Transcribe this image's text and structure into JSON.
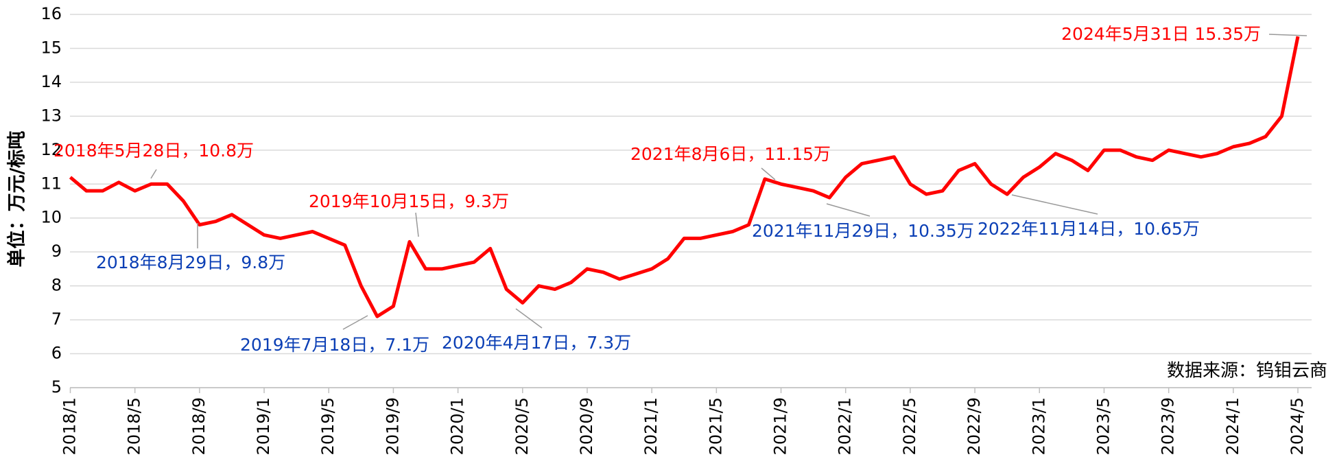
{
  "chart_data": {
    "type": "line",
    "y_label": "单位：万元/标吨",
    "source": "数据来源：钨钼云商",
    "categories": [
      "2018/1",
      "2018/2",
      "2018/3",
      "2018/4",
      "2018/5",
      "2018/6",
      "2018/7",
      "2018/8",
      "2018/9",
      "2018/10",
      "2018/11",
      "2018/12",
      "2019/1",
      "2019/2",
      "2019/3",
      "2019/4",
      "2019/5",
      "2019/6",
      "2019/7",
      "2019/8",
      "2019/9",
      "2019/10",
      "2019/11",
      "2019/12",
      "2020/1",
      "2020/2",
      "2020/3",
      "2020/4",
      "2020/5",
      "2020/6",
      "2020/7",
      "2020/8",
      "2020/9",
      "2020/10",
      "2020/11",
      "2020/12",
      "2021/1",
      "2021/2",
      "2021/3",
      "2021/4",
      "2021/5",
      "2021/6",
      "2021/7",
      "2021/8",
      "2021/9",
      "2021/10",
      "2021/11",
      "2021/12",
      "2022/1",
      "2022/2",
      "2022/3",
      "2022/4",
      "2022/5",
      "2022/6",
      "2022/7",
      "2022/8",
      "2022/9",
      "2022/10",
      "2022/11",
      "2022/12",
      "2023/1",
      "2023/2",
      "2023/3",
      "2023/4",
      "2023/5",
      "2023/6",
      "2023/7",
      "2023/8",
      "2023/9",
      "2023/10",
      "2023/11",
      "2023/12",
      "2024/1",
      "2024/2",
      "2024/3",
      "2024/4",
      "2024/5"
    ],
    "series": [
      {
        "color": "#ff0000",
        "values": [
          11.2,
          10.8,
          10.8,
          11.05,
          10.8,
          11.0,
          11.0,
          10.5,
          9.8,
          9.9,
          10.1,
          9.8,
          9.5,
          9.4,
          9.5,
          9.6,
          9.4,
          9.2,
          8.0,
          7.1,
          7.4,
          9.3,
          8.5,
          8.5,
          8.6,
          8.7,
          9.1,
          7.9,
          7.5,
          8.0,
          7.9,
          8.1,
          8.5,
          8.4,
          8.2,
          8.35,
          8.5,
          8.8,
          9.4,
          9.4,
          9.5,
          9.6,
          9.8,
          11.15,
          11.0,
          10.9,
          10.8,
          10.6,
          11.2,
          11.6,
          11.7,
          11.8,
          11.0,
          10.7,
          10.8,
          11.4,
          11.6,
          11.0,
          10.7,
          11.2,
          11.5,
          11.9,
          11.7,
          11.4,
          12.0,
          12.0,
          11.8,
          11.7,
          12.0,
          11.9,
          11.8,
          11.9,
          12.1,
          12.2,
          12.4,
          13.0,
          15.35
        ]
      }
    ],
    "xticks": [
      "2018/1",
      "2018/5",
      "2018/9",
      "2019/1",
      "2019/5",
      "2019/9",
      "2020/1",
      "2020/5",
      "2020/9",
      "2021/1",
      "2021/5",
      "2021/9",
      "2022/1",
      "2022/5",
      "2022/9",
      "2023/1",
      "2023/5",
      "2023/9",
      "2024/1",
      "2024/5"
    ],
    "ylim": [
      5,
      16
    ],
    "yticks": [
      5,
      6,
      7,
      8,
      9,
      10,
      11,
      12,
      13,
      14,
      15,
      16
    ],
    "grid": true,
    "annotations": [
      {
        "text": "2018年5月28日，10.8万",
        "color": "#ff0000"
      },
      {
        "text": "2018年8月29日，9.8万",
        "color": "#0b3fb5"
      },
      {
        "text": "2019年10月15日，9.3万",
        "color": "#ff0000"
      },
      {
        "text": "2019年7月18日，7.1万",
        "color": "#0b3fb5"
      },
      {
        "text": "2020年4月17日，7.3万",
        "color": "#0b3fb5"
      },
      {
        "text": "2021年8月6日，11.15万",
        "color": "#ff0000"
      },
      {
        "text": "2021年11月29日，10.35万",
        "color": "#0b3fb5"
      },
      {
        "text": "2022年11月14日，10.65万",
        "color": "#0b3fb5"
      },
      {
        "text": "2024年5月31日 15.35万",
        "color": "#ff0000"
      }
    ]
  }
}
